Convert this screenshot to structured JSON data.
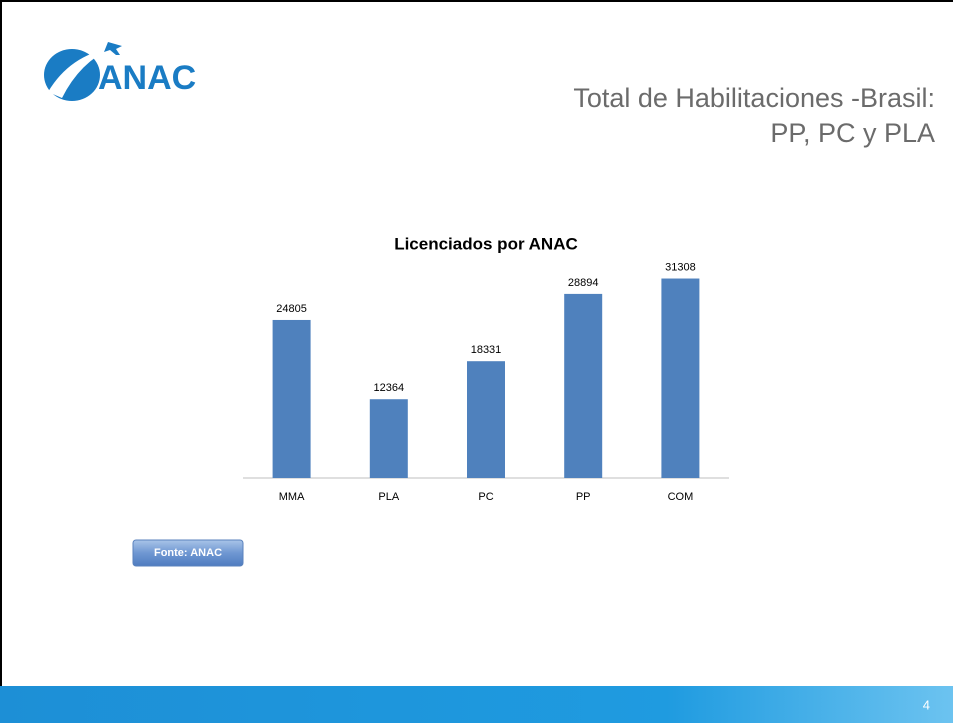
{
  "slide": {
    "logo": "ANAC",
    "title_lines": [
      "Total de Habilitaciones -Brasil:",
      "PP, PC y PLA"
    ],
    "source": "Fonte: ANAC",
    "page_number": 4
  },
  "chart_data": {
    "type": "bar",
    "title": "Licenciados por ANAC",
    "categories": [
      "MMA",
      "PLA",
      "PC",
      "PP",
      "COM"
    ],
    "values": [
      24805,
      12364,
      18331,
      28894,
      31308
    ],
    "color": "#4f81bd",
    "ylim": [
      0,
      35000
    ]
  }
}
